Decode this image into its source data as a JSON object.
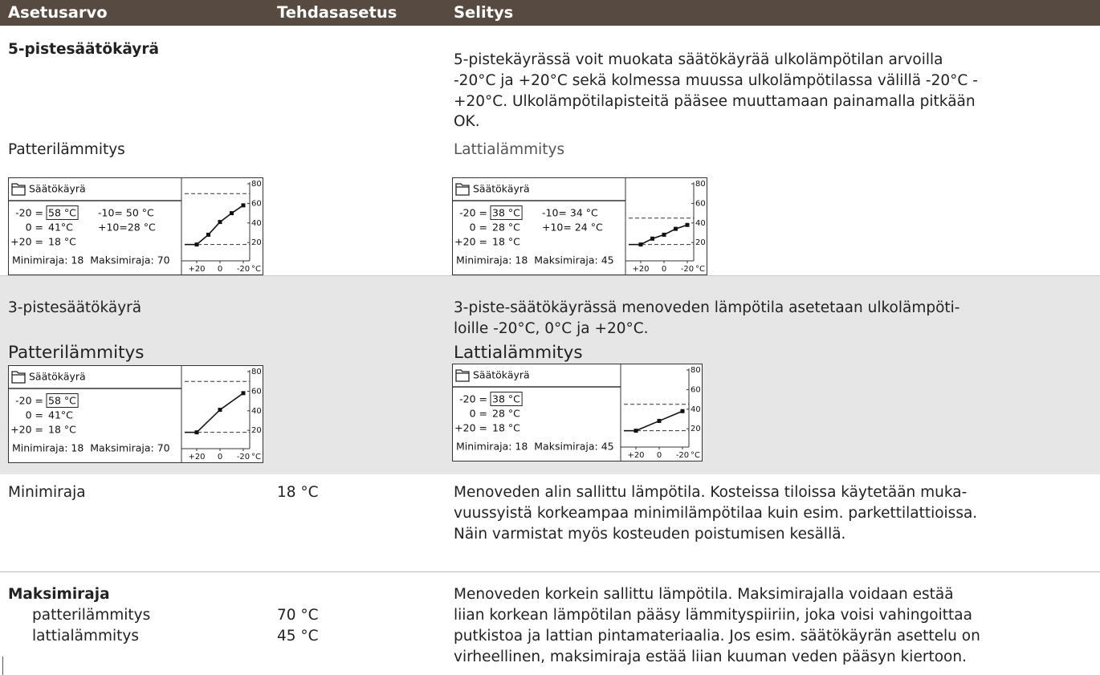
{
  "header": [
    "Asetusarvo",
    "Tehdasasetus",
    "Selitys"
  ],
  "rows": [
    {
      "setting": "5-pistesäätökäyrä",
      "description": [
        "5-pistekäyrässä voit muokata säätökäyrää ulkolämpötilan arvoilla",
        "-20°C ja +20°C sekä kolmessa muussa ulkolämpötilassa välillä -20°C -",
        "+20°C. Ulkolämpötilapisteitä pääsee muuttamaan painamalla pitkään",
        "OK."
      ],
      "subheadings": [
        "Patterilämmitys",
        "Lattialämmitys"
      ],
      "screens": [
        {
          "title": "Säätökäyrä",
          "lines": [
            [
              "-20 =",
              "58 °C",
              "-10= 50 °C"
            ],
            [
              "0 =",
              "41°C",
              "+10=28 °C"
            ],
            [
              "+20 =",
              "18 °C"
            ]
          ],
          "limits": "Minimiraja: 18  Maksimiraja: 70",
          "yticks": [
            80,
            60,
            40,
            20
          ],
          "xticks": [
            {
              "value": 20,
              "label": "+20"
            },
            0,
            -20
          ],
          "unit": "°C",
          "curve": [
            [
              20,
              18
            ],
            [
              10,
              28
            ],
            [
              0,
              41
            ],
            [
              -10,
              50
            ],
            [
              -20,
              58
            ]
          ],
          "min": 18,
          "max": 70
        },
        {
          "title": "Säätökäyrä",
          "lines": [
            [
              "-20 =",
              "38 °C",
              "-10= 34 °C"
            ],
            [
              "0 =",
              "28 °C",
              "+10= 24 °C"
            ],
            [
              "+20 =",
              "18 °C"
            ]
          ],
          "limits": "Minimiraja: 18  Maksimiraja: 45",
          "yticks": [
            80,
            60,
            40,
            20
          ],
          "xticks": [
            {
              "value": 20,
              "label": "+20"
            },
            0,
            -20
          ],
          "unit": "°C",
          "curve": [
            [
              20,
              18
            ],
            [
              10,
              24
            ],
            [
              0,
              28
            ],
            [
              -10,
              34
            ],
            [
              -20,
              38
            ]
          ],
          "min": 18,
          "max": 45
        }
      ]
    },
    {
      "setting": "3-pistesäätökäyrä",
      "description": [
        "3-piste-säätökäyrässä menoveden  lämpötila  asetetaan ulkolämpöti-",
        "loille -20°C, 0°C ja +20°C."
      ],
      "subheadings": [
        "Patterilämmitys",
        "Lattialämmitys"
      ],
      "screens": [
        {
          "title": "Säätökäyrä",
          "lines": [
            [
              "-20 =",
              "58 °C"
            ],
            [
              "0 =",
              "41°C"
            ],
            [
              "+20 =",
              "18 °C"
            ]
          ],
          "limits": "Minimiraja: 18  Maksimiraja: 70",
          "yticks": [
            80,
            60,
            40,
            20
          ],
          "xticks": [
            {
              "value": 20,
              "label": "+20"
            },
            0,
            -20
          ],
          "unit": "°C",
          "curve": [
            [
              20,
              18
            ],
            [
              0,
              41
            ],
            [
              -20,
              58
            ]
          ],
          "min": 18,
          "max": 70
        },
        {
          "title": "Säätökäyrä",
          "lines": [
            [
              "-20 =",
              "38 °C"
            ],
            [
              "0 =",
              "28 °C"
            ],
            [
              "+20 =",
              "18 °C"
            ]
          ],
          "limits": "Minimiraja: 18  Maksimiraja: 45",
          "yticks": [
            80,
            60,
            40,
            20
          ],
          "xticks": [
            {
              "value": 20,
              "label": "+20"
            },
            0,
            -20
          ],
          "unit": "°C",
          "curve": [
            [
              20,
              18
            ],
            [
              0,
              28
            ],
            [
              -20,
              38
            ]
          ],
          "min": 18,
          "max": 45
        }
      ]
    },
    {
      "setting": "Minimiraja",
      "default": "18 °C",
      "description": [
        "Menoveden alin sallittu lämpötila. Kosteissa tiloissa käytetään muka-",
        "vuussyistä korkeampaa minimilämpötilaa kuin esim. parkettilattioissa.",
        "Näin varmistat myös kosteuden poistumisen kesällä."
      ]
    },
    {
      "setting": "Maksimiraja",
      "subsettings": [
        {
          "name": "patterilämmitys",
          "default": "70 °C"
        },
        {
          "name": "lattialämmitys",
          "default": "45 °C"
        }
      ],
      "description": [
        "Menoveden korkein sallittu lämpötila. Maksimirajalla voidaan estää",
        "liian korkean lämpötilan pääsy lämmityspiiriin, joka voisi vahingoittaa",
        "putkistoa ja lattian pintamateriaalia.  Jos esim. säätökäyrän asettelu on",
        "virheellinen, maksimiraja estää liian kuuman veden pääsyn kiertoon."
      ]
    }
  ]
}
